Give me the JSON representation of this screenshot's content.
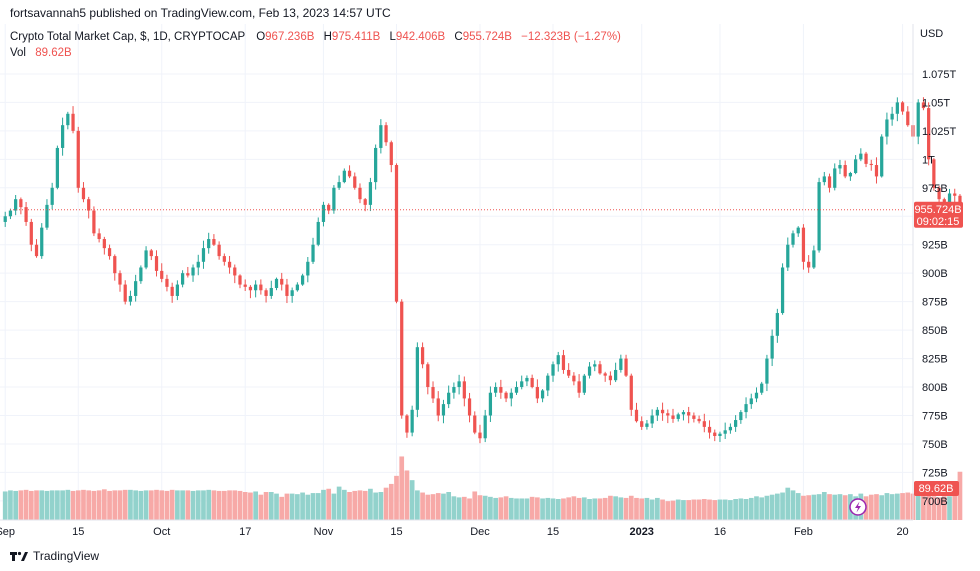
{
  "header": {
    "published": "fortsavannah5 published on TradingView.com, Feb 13, 2023 14:57 UTC"
  },
  "legend": {
    "symbol": "Crypto Total Market Cap, $, 1D, CRYPTOCAP",
    "o_label": "O",
    "o_value": "967.236B",
    "h_label": "H",
    "h_value": "975.411B",
    "l_label": "L",
    "l_value": "942.406B",
    "c_label": "C",
    "c_value": "955.724B",
    "change": "−12.323B (−1.27%)",
    "vol_label": "Vol",
    "vol_value": "89.62B"
  },
  "axis": {
    "currency": "USD",
    "price_tag": "955.724B",
    "time_tag": "09:02:15",
    "vol_tag": "89.62B"
  },
  "footer": {
    "brand": "TradingView"
  },
  "colors": {
    "up": "#26a69a",
    "down": "#ef5350",
    "vol_up": "#92d2cc",
    "vol_down": "#f7a9a7",
    "text": "#131722",
    "grid": "#f0f3fa"
  },
  "chart_data": {
    "type": "candlestick",
    "title": "Crypto Total Market Cap, $, 1D, CRYPTOCAP",
    "y_unit": "USD",
    "y_ticks": [
      "1.075T",
      "1.05T",
      "1.025T",
      "1T",
      "975B",
      "950B",
      "925B",
      "900B",
      "875B",
      "850B",
      "825B",
      "800B",
      "775B",
      "750B",
      "725B",
      "700B"
    ],
    "y_tick_values": [
      1075,
      1050,
      1025,
      1000,
      975,
      950,
      925,
      900,
      875,
      850,
      825,
      800,
      775,
      750,
      725,
      700
    ],
    "y_range_billions": [
      692,
      1089
    ],
    "x_ticks": [
      "Sep",
      "15",
      "Oct",
      "17",
      "Nov",
      "15",
      "Dec",
      "15",
      "2023",
      "16",
      "Feb",
      "20"
    ],
    "x_tick_bold": [
      "2023"
    ],
    "x_range": [
      "2022-08-31",
      "2023-02-22"
    ],
    "x_tick_dates": [
      "2022-09-01",
      "2022-09-15",
      "2022-10-01",
      "2022-10-17",
      "2022-11-01",
      "2022-11-15",
      "2022-12-01",
      "2022-12-15",
      "2023-01-01",
      "2023-01-16",
      "2023-02-01",
      "2023-02-20"
    ],
    "last_close_billions": 955.7,
    "close_billions": [
      950,
      955,
      965,
      958,
      945,
      925,
      915,
      940,
      960,
      975,
      1010,
      1030,
      1040,
      1025,
      975,
      965,
      955,
      935,
      930,
      922,
      915,
      900,
      890,
      875,
      880,
      893,
      905,
      920,
      915,
      902,
      895,
      888,
      880,
      890,
      900,
      898,
      905,
      910,
      922,
      930,
      925,
      915,
      910,
      905,
      898,
      890,
      888,
      885,
      890,
      885,
      880,
      887,
      895,
      890,
      880,
      885,
      890,
      898,
      910,
      925,
      945,
      960,
      955,
      975,
      980,
      990,
      985,
      975,
      965,
      960,
      980,
      1010,
      1030,
      1015,
      995,
      875,
      775,
      760,
      780,
      835,
      820,
      800,
      790,
      775,
      785,
      795,
      800,
      805,
      790,
      775,
      760,
      755,
      775,
      795,
      800,
      795,
      790,
      795,
      800,
      805,
      808,
      800,
      790,
      797,
      810,
      820,
      828,
      815,
      810,
      805,
      795,
      810,
      818,
      820,
      812,
      810,
      806,
      815,
      825,
      810,
      780,
      770,
      765,
      768,
      775,
      780,
      777,
      775,
      772,
      776,
      778,
      775,
      772,
      770,
      765,
      760,
      757,
      759,
      762,
      765,
      771,
      778,
      785,
      790,
      795,
      803,
      825,
      845,
      865,
      905,
      925,
      935,
      940,
      910,
      905,
      920,
      980,
      985,
      975,
      992,
      995,
      985,
      988,
      1000,
      1005,
      996,
      995,
      985,
      1020,
      1035,
      1040,
      1050,
      1042,
      1030,
      1020,
      1050,
      1045,
      1000,
      975,
      965,
      962,
      970,
      968,
      955.7
    ],
    "volume_billions": [
      53,
      55,
      54,
      55,
      56,
      54,
      55,
      55,
      54,
      55,
      55,
      55,
      56,
      54,
      55,
      56,
      55,
      54,
      55,
      57,
      54,
      55,
      55,
      56,
      56,
      55,
      54,
      55,
      55,
      56,
      55,
      54,
      56,
      55,
      55,
      55,
      54,
      55,
      55,
      56,
      55,
      54,
      54,
      55,
      55,
      54,
      52,
      51,
      53,
      47,
      52,
      52,
      49,
      43,
      49,
      49,
      48,
      51,
      47,
      50,
      50,
      56,
      58,
      49,
      62,
      56,
      52,
      54,
      55,
      54,
      58,
      51,
      52,
      60,
      67,
      82,
      118,
      92,
      74,
      55,
      51,
      47,
      48,
      50,
      49,
      52,
      44,
      42,
      43,
      40,
      53,
      46,
      45,
      43,
      41,
      42,
      44,
      41,
      40,
      40,
      40,
      43,
      42,
      40,
      41,
      40,
      39,
      40,
      42,
      44,
      41,
      42,
      39,
      40,
      40,
      41,
      45,
      44,
      42,
      41,
      45,
      41,
      40,
      41,
      38,
      41,
      38,
      35,
      36,
      38,
      37,
      37,
      38,
      38,
      39,
      38,
      37,
      38,
      38,
      37,
      39,
      40,
      39,
      41,
      44,
      42,
      45,
      47,
      49,
      51,
      60,
      55,
      50,
      45,
      46,
      47,
      48,
      52,
      48,
      47,
      48,
      46,
      48,
      44,
      49,
      44,
      47,
      48,
      46,
      50,
      48,
      49,
      50,
      51,
      49,
      50,
      46,
      45,
      44,
      42,
      44,
      44,
      45,
      89.62
    ]
  }
}
